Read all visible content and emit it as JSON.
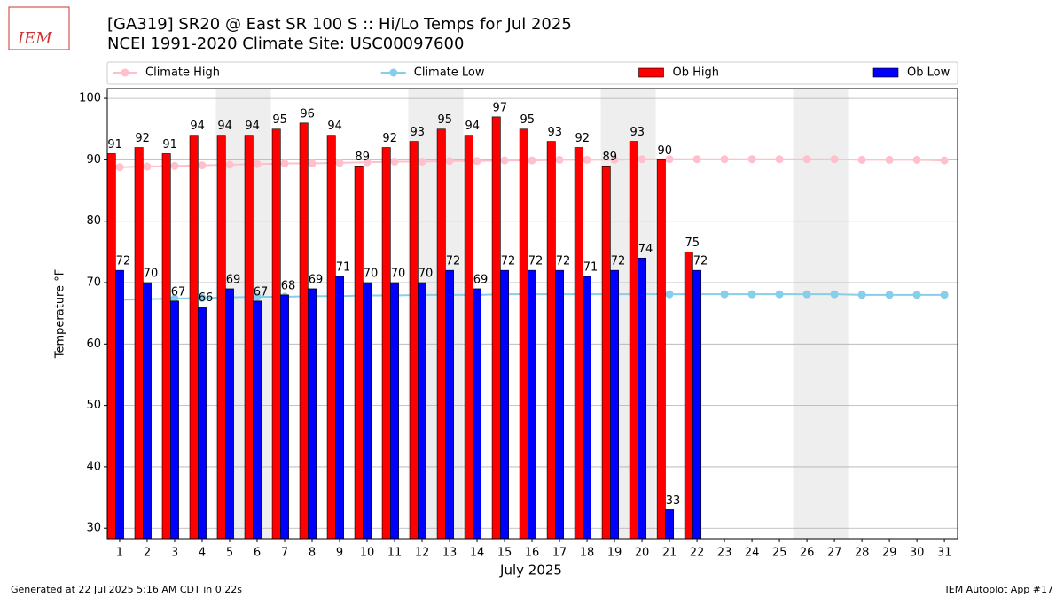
{
  "logo": "IEM",
  "footer_left": "Generated at 22 Jul 2025 5:16 AM CDT in 0.22s",
  "footer_right": "IEM Autoplot App #17",
  "chart_data": {
    "type": "bar",
    "title": "[GA319] SR20 @ East SR 100 S :: Hi/Lo Temps for Jul 2025",
    "subtitle": "NCEI 1991-2020 Climate Site: USC00097600",
    "x_label": "July 2025",
    "y_label": "Temperature °F",
    "x": [
      1,
      2,
      3,
      4,
      5,
      6,
      7,
      8,
      9,
      10,
      11,
      12,
      13,
      14,
      15,
      16,
      17,
      18,
      19,
      20,
      21,
      22,
      23,
      24,
      25,
      26,
      27,
      28,
      29,
      30,
      31
    ],
    "xticks": [
      1,
      2,
      3,
      4,
      5,
      6,
      7,
      8,
      9,
      10,
      11,
      12,
      13,
      14,
      15,
      16,
      17,
      18,
      19,
      20,
      21,
      22,
      23,
      24,
      25,
      26,
      27,
      28,
      29,
      30,
      31
    ],
    "xlim": [
      0.55,
      31.48
    ],
    "ylim": [
      28.3,
      101.6
    ],
    "yticks": [
      30,
      40,
      50,
      60,
      70,
      80,
      90,
      100
    ],
    "grid": true,
    "shaded_spans": [
      [
        4.5,
        6.5
      ],
      [
        11.5,
        13.5
      ],
      [
        18.5,
        20.5
      ],
      [
        25.5,
        27.5
      ]
    ],
    "shade_color": "#eeeeee",
    "legend": "top",
    "series": [
      {
        "name": "Climate High",
        "type": "line",
        "color": "#ffc0cb",
        "values": [
          88.8,
          88.9,
          89.0,
          89.1,
          89.2,
          89.3,
          89.4,
          89.4,
          89.5,
          89.6,
          89.7,
          89.7,
          89.8,
          89.8,
          89.9,
          89.9,
          90.0,
          90.0,
          90.0,
          90.1,
          90.1,
          90.1,
          90.1,
          90.1,
          90.1,
          90.1,
          90.1,
          90.0,
          90.0,
          90.0,
          89.9
        ]
      },
      {
        "name": "Climate Low",
        "type": "line",
        "color": "#87ceeb",
        "values": [
          67.2,
          67.3,
          67.4,
          67.5,
          67.6,
          67.7,
          67.7,
          67.8,
          67.8,
          67.9,
          67.9,
          68.0,
          68.0,
          68.0,
          68.1,
          68.1,
          68.1,
          68.1,
          68.1,
          68.1,
          68.1,
          68.1,
          68.1,
          68.1,
          68.1,
          68.1,
          68.1,
          68.0,
          68.0,
          68.0,
          68.0
        ]
      },
      {
        "name": "Ob High",
        "type": "bar",
        "color": "#ff0000",
        "values": [
          91,
          92,
          91,
          94,
          94,
          94,
          95,
          96,
          94,
          89,
          92,
          93,
          95,
          94,
          97,
          95,
          93,
          92,
          89,
          93,
          90,
          75,
          null,
          null,
          null,
          null,
          null,
          null,
          null,
          null,
          null
        ]
      },
      {
        "name": "Ob Low",
        "type": "bar",
        "color": "#0000ff",
        "values": [
          72,
          70,
          67,
          66,
          69,
          67,
          68,
          69,
          71,
          70,
          70,
          70,
          72,
          69,
          72,
          72,
          72,
          71,
          72,
          74,
          33,
          72,
          null,
          null,
          null,
          null,
          null,
          null,
          null,
          null,
          null
        ]
      }
    ]
  }
}
